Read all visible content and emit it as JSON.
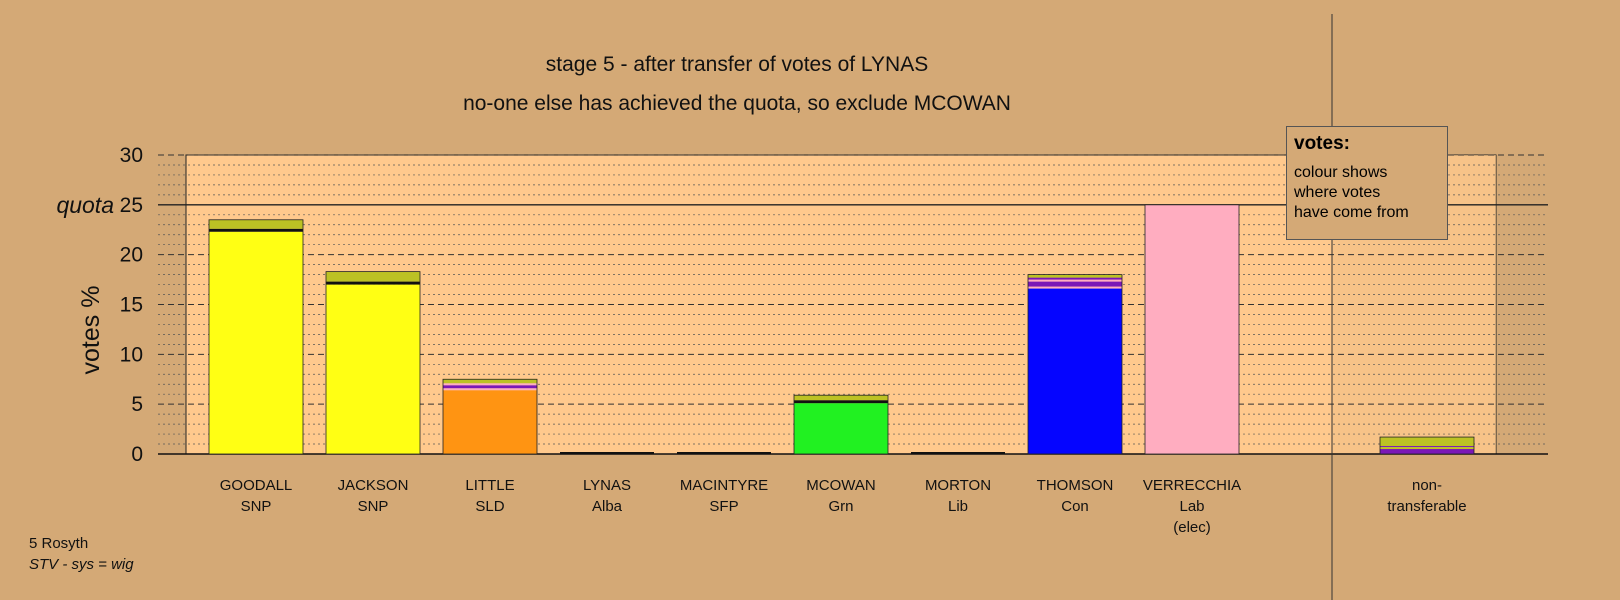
{
  "titles": {
    "line1": "stage 5 - after transfer of votes of LYNAS",
    "line2": "no-one else has achieved the quota, so exclude MCOWAN"
  },
  "legend": {
    "title": "votes:",
    "lines": [
      "colour shows",
      "where votes",
      "have come from"
    ]
  },
  "footer": {
    "ward": "5 Rosyth",
    "system": "STV - sys = wig"
  },
  "colors": {
    "background": "#d4a976",
    "plot_area": "#ffc98d",
    "SNP": "#ffff14",
    "SLD": "#ff9412",
    "Grn": "#21f121",
    "Con": "#0505ff",
    "Lab": "#ffadc0",
    "Alba": "#bcc224",
    "SFP": "#7b17b7",
    "Lib": "#e8c84a",
    "mixed": "#111111"
  },
  "chart_data": {
    "type": "bar",
    "stacked": true,
    "ylabel": "votes %",
    "ylim": [
      0,
      30
    ],
    "yticks": [
      0,
      5,
      10,
      15,
      20,
      25,
      30
    ],
    "quota": 25,
    "quota_label": "quota",
    "grid": "dashed every 5, dotted every 1",
    "legend_position": "top-right",
    "categories": [
      {
        "name": "GOODALL",
        "party": "SNP",
        "note": ""
      },
      {
        "name": "JACKSON",
        "party": "SNP",
        "note": ""
      },
      {
        "name": "LITTLE",
        "party": "SLD",
        "note": ""
      },
      {
        "name": "LYNAS",
        "party": "Alba",
        "note": ""
      },
      {
        "name": "MACINTYRE",
        "party": "SFP",
        "note": ""
      },
      {
        "name": "MCOWAN",
        "party": "Grn",
        "note": ""
      },
      {
        "name": "MORTON",
        "party": "Lib",
        "note": ""
      },
      {
        "name": "THOMSON",
        "party": "Con",
        "note": ""
      },
      {
        "name": "VERRECCHIA",
        "party": "Lab",
        "note": "(elec)"
      },
      {
        "name": "non-",
        "party": "transferable",
        "note": ""
      }
    ],
    "stacks": [
      [
        {
          "source": "SNP",
          "value": 22.3
        },
        {
          "source": "mixed",
          "value": 0.3
        },
        {
          "source": "Alba",
          "value": 0.9
        }
      ],
      [
        {
          "source": "SNP",
          "value": 17.0
        },
        {
          "source": "mixed",
          "value": 0.3
        },
        {
          "source": "Alba",
          "value": 1.0
        }
      ],
      [
        {
          "source": "SLD",
          "value": 6.4
        },
        {
          "source": "Lab",
          "value": 0.2
        },
        {
          "source": "SFP",
          "value": 0.3
        },
        {
          "source": "Lab",
          "value": 0.2
        },
        {
          "source": "Alba",
          "value": 0.4
        }
      ],
      [],
      [],
      [
        {
          "source": "Grn",
          "value": 5.1
        },
        {
          "source": "mixed",
          "value": 0.3
        },
        {
          "source": "Alba",
          "value": 0.5
        }
      ],
      [],
      [
        {
          "source": "Con",
          "value": 16.6
        },
        {
          "source": "Lab",
          "value": 0.2
        },
        {
          "source": "SFP",
          "value": 0.5
        },
        {
          "source": "Lab",
          "value": 0.2
        },
        {
          "source": "SFP",
          "value": 0.2
        },
        {
          "source": "Alba",
          "value": 0.3
        }
      ],
      [
        {
          "source": "Lab",
          "value": 25.0
        }
      ],
      [
        {
          "source": "SFP",
          "value": 0.5
        },
        {
          "source": "Alba",
          "value": 0.2
        },
        {
          "source": "SFP",
          "value": 0.1
        },
        {
          "source": "Alba",
          "value": 0.9
        }
      ]
    ],
    "totals": [
      23.5,
      18.3,
      7.5,
      0,
      0,
      5.9,
      0,
      18.0,
      25.0,
      1.7
    ]
  }
}
